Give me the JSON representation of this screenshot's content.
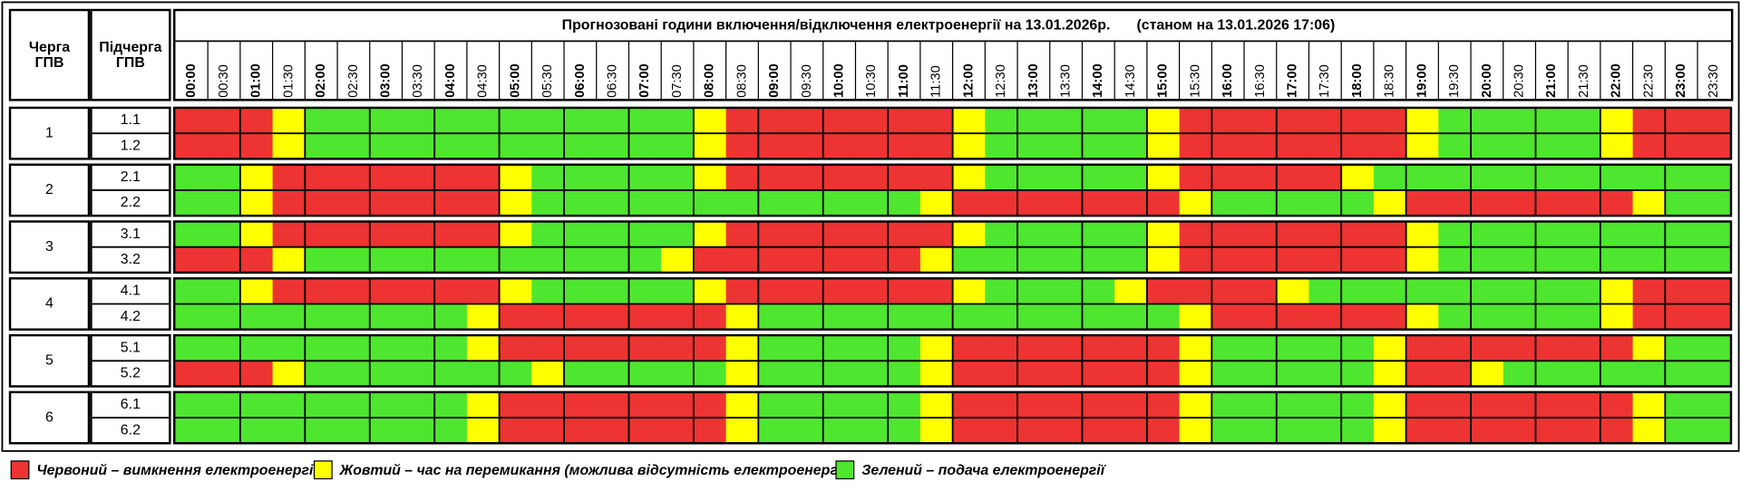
{
  "header": {
    "queue_label": [
      "Черга",
      "ГПВ"
    ],
    "subqueue_label": [
      "Підчерга",
      "ГПВ"
    ],
    "title": "Прогнозовані години включення/відключення електроенергії на 13.01.2026р.",
    "status": "(станом на 13.01.2026 17:06)",
    "times": [
      "00:00",
      "00:30",
      "01:00",
      "01:30",
      "02:00",
      "02:30",
      "03:00",
      "03:30",
      "04:00",
      "04:30",
      "05:00",
      "05:30",
      "06:00",
      "06:30",
      "07:00",
      "07:30",
      "08:00",
      "08:30",
      "09:00",
      "09:30",
      "10:00",
      "10:30",
      "11:00",
      "11:30",
      "12:00",
      "12:30",
      "13:00",
      "13:30",
      "14:00",
      "14:30",
      "15:00",
      "15:30",
      "16:00",
      "16:30",
      "17:00",
      "17:30",
      "18:00",
      "18:30",
      "19:00",
      "19:30",
      "20:00",
      "20:30",
      "21:00",
      "21:30",
      "22:00",
      "22:30",
      "23:00",
      "23:30"
    ]
  },
  "legend": [
    {
      "color": "#ee3333",
      "label": "Червоний – вимкнення електроенергії"
    },
    {
      "color": "#ffff00",
      "label": "Жовтий – час на перемикання (можлива відсутність електроенергії)"
    },
    {
      "color": "#4ee62e",
      "label": "Зелений – подача електроенергії"
    }
  ],
  "groups": [
    {
      "queue": "1",
      "rows": [
        {
          "subqueue": "1.1",
          "slots": [
            0,
            0,
            0,
            1,
            2,
            2,
            2,
            2,
            2,
            2,
            2,
            2,
            2,
            2,
            2,
            2,
            1,
            0,
            0,
            0,
            0,
            0,
            0,
            0,
            1,
            2,
            2,
            2,
            2,
            2,
            1,
            0,
            0,
            0,
            0,
            0,
            0,
            0,
            1,
            2,
            2,
            2,
            2,
            2,
            1,
            0,
            0,
            0
          ]
        },
        {
          "subqueue": "1.2",
          "slots": [
            0,
            0,
            0,
            1,
            2,
            2,
            2,
            2,
            2,
            2,
            2,
            2,
            2,
            2,
            2,
            2,
            1,
            0,
            0,
            0,
            0,
            0,
            0,
            0,
            1,
            2,
            2,
            2,
            2,
            2,
            1,
            0,
            0,
            0,
            0,
            0,
            0,
            0,
            1,
            2,
            2,
            2,
            2,
            2,
            1,
            0,
            0,
            0
          ]
        }
      ]
    },
    {
      "queue": "2",
      "rows": [
        {
          "subqueue": "2.1",
          "slots": [
            2,
            2,
            1,
            0,
            0,
            0,
            0,
            0,
            0,
            0,
            1,
            2,
            2,
            2,
            2,
            2,
            1,
            0,
            0,
            0,
            0,
            0,
            0,
            0,
            1,
            2,
            2,
            2,
            2,
            2,
            1,
            0,
            0,
            0,
            0,
            0,
            1,
            2,
            2,
            2,
            2,
            2,
            2,
            2,
            2,
            2,
            2,
            2
          ]
        },
        {
          "subqueue": "2.2",
          "slots": [
            2,
            2,
            1,
            0,
            0,
            0,
            0,
            0,
            0,
            0,
            1,
            2,
            2,
            2,
            2,
            2,
            2,
            2,
            2,
            2,
            2,
            2,
            2,
            1,
            0,
            0,
            0,
            0,
            0,
            0,
            0,
            1,
            2,
            2,
            2,
            2,
            2,
            1,
            0,
            0,
            0,
            0,
            0,
            0,
            0,
            1,
            2,
            2
          ]
        }
      ]
    },
    {
      "queue": "3",
      "rows": [
        {
          "subqueue": "3.1",
          "slots": [
            2,
            2,
            1,
            0,
            0,
            0,
            0,
            0,
            0,
            0,
            1,
            2,
            2,
            2,
            2,
            2,
            1,
            0,
            0,
            0,
            0,
            0,
            0,
            0,
            1,
            2,
            2,
            2,
            2,
            2,
            1,
            0,
            0,
            0,
            0,
            0,
            0,
            0,
            1,
            2,
            2,
            2,
            2,
            2,
            2,
            2,
            2,
            2
          ]
        },
        {
          "subqueue": "3.2",
          "slots": [
            0,
            0,
            0,
            1,
            2,
            2,
            2,
            2,
            2,
            2,
            2,
            2,
            2,
            2,
            2,
            1,
            0,
            0,
            0,
            0,
            0,
            0,
            0,
            1,
            2,
            2,
            2,
            2,
            2,
            2,
            1,
            0,
            0,
            0,
            0,
            0,
            0,
            0,
            1,
            2,
            2,
            2,
            2,
            2,
            2,
            2,
            2,
            2
          ]
        }
      ]
    },
    {
      "queue": "4",
      "rows": [
        {
          "subqueue": "4.1",
          "slots": [
            2,
            2,
            1,
            0,
            0,
            0,
            0,
            0,
            0,
            0,
            1,
            2,
            2,
            2,
            2,
            2,
            1,
            0,
            0,
            0,
            0,
            0,
            0,
            0,
            1,
            2,
            2,
            2,
            2,
            1,
            0,
            0,
            0,
            0,
            1,
            2,
            2,
            2,
            2,
            2,
            2,
            2,
            2,
            2,
            1,
            0,
            0,
            0
          ]
        },
        {
          "subqueue": "4.2",
          "slots": [
            2,
            2,
            2,
            2,
            2,
            2,
            2,
            2,
            2,
            1,
            0,
            0,
            0,
            0,
            0,
            0,
            0,
            1,
            2,
            2,
            2,
            2,
            2,
            2,
            2,
            2,
            2,
            2,
            2,
            2,
            2,
            1,
            0,
            0,
            0,
            0,
            0,
            0,
            1,
            2,
            2,
            2,
            2,
            2,
            1,
            0,
            0,
            0
          ]
        }
      ]
    },
    {
      "queue": "5",
      "rows": [
        {
          "subqueue": "5.1",
          "slots": [
            2,
            2,
            2,
            2,
            2,
            2,
            2,
            2,
            2,
            1,
            0,
            0,
            0,
            0,
            0,
            0,
            0,
            1,
            2,
            2,
            2,
            2,
            2,
            1,
            0,
            0,
            0,
            0,
            0,
            0,
            0,
            1,
            2,
            2,
            2,
            2,
            2,
            1,
            0,
            0,
            0,
            0,
            0,
            0,
            0,
            1,
            2,
            2
          ]
        },
        {
          "subqueue": "5.2",
          "slots": [
            0,
            0,
            0,
            1,
            2,
            2,
            2,
            2,
            2,
            2,
            2,
            1,
            2,
            2,
            2,
            2,
            2,
            1,
            2,
            2,
            2,
            2,
            2,
            1,
            0,
            0,
            0,
            0,
            0,
            0,
            0,
            1,
            2,
            2,
            2,
            2,
            2,
            1,
            0,
            0,
            1,
            2,
            2,
            2,
            2,
            2,
            2,
            2
          ]
        }
      ]
    },
    {
      "queue": "6",
      "rows": [
        {
          "subqueue": "6.1",
          "slots": [
            2,
            2,
            2,
            2,
            2,
            2,
            2,
            2,
            2,
            1,
            0,
            0,
            0,
            0,
            0,
            0,
            0,
            1,
            2,
            2,
            2,
            2,
            2,
            1,
            0,
            0,
            0,
            0,
            0,
            0,
            0,
            1,
            2,
            2,
            2,
            2,
            2,
            1,
            0,
            0,
            0,
            0,
            0,
            0,
            0,
            1,
            2,
            2
          ]
        },
        {
          "subqueue": "6.2",
          "slots": [
            2,
            2,
            2,
            2,
            2,
            2,
            2,
            2,
            2,
            1,
            0,
            0,
            0,
            0,
            0,
            0,
            0,
            1,
            2,
            2,
            2,
            2,
            2,
            1,
            0,
            0,
            0,
            0,
            0,
            0,
            0,
            1,
            2,
            2,
            2,
            2,
            2,
            1,
            0,
            0,
            0,
            0,
            0,
            0,
            0,
            1,
            2,
            2
          ]
        }
      ]
    }
  ]
}
